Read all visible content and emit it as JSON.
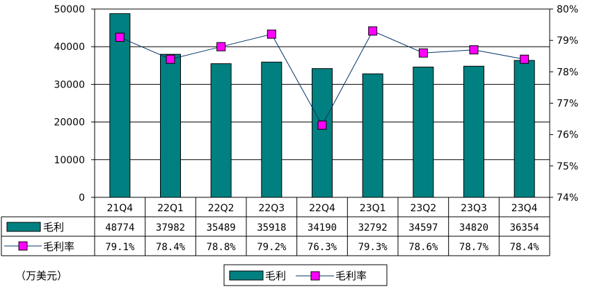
{
  "chart_data": {
    "type": "bar",
    "categories": [
      "21Q4",
      "22Q1",
      "22Q2",
      "22Q3",
      "22Q4",
      "23Q1",
      "23Q2",
      "23Q3",
      "23Q4"
    ],
    "series": [
      {
        "name": "毛利",
        "kind": "bar",
        "axis": "left",
        "color": "#008080",
        "values": [
          48774,
          37982,
          35489,
          35918,
          34190,
          32792,
          34597,
          34820,
          36354
        ],
        "labels": [
          "48774",
          "37982",
          "35489",
          "35918",
          "34190",
          "32792",
          "34597",
          "34820",
          "36354"
        ]
      },
      {
        "name": "毛利率",
        "kind": "line",
        "axis": "right",
        "color": "#003366",
        "marker_color": "#ff00ff",
        "values": [
          79.1,
          78.4,
          78.8,
          79.2,
          76.3,
          79.3,
          78.6,
          78.7,
          78.4
        ],
        "labels": [
          "79.1%",
          "78.4%",
          "78.8%",
          "79.2%",
          "76.3%",
          "79.3%",
          "78.6%",
          "78.7%",
          "78.4%"
        ]
      }
    ],
    "y_left": {
      "lim": [
        0,
        50000
      ],
      "ticks": [
        0,
        10000,
        20000,
        30000,
        40000,
        50000
      ],
      "tick_labels": [
        "0",
        "10000",
        "20000",
        "30000",
        "40000",
        "50000"
      ]
    },
    "y_right": {
      "lim": [
        74,
        80
      ],
      "ticks": [
        74,
        75,
        76,
        77,
        78,
        79,
        80
      ],
      "tick_labels": [
        "74%",
        "75%",
        "76%",
        "77%",
        "78%",
        "79%",
        "80%"
      ]
    },
    "grid": true,
    "data_table": true,
    "legend": "bottom-center",
    "unit_note": "（万美元）"
  }
}
